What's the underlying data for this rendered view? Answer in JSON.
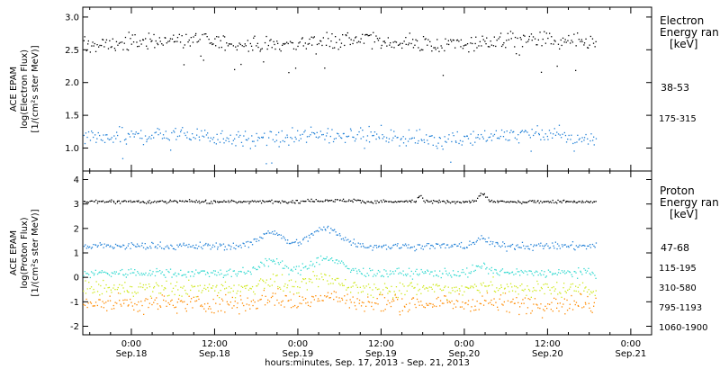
{
  "chart_data": {
    "type": "scatter",
    "x_axis": {
      "label": "hours:minutes, Sep. 17, 2013 - Sep. 21, 2013",
      "range_hours": [
        -7,
        75
      ],
      "ticks": [
        {
          "hour": 0,
          "time": "0:00",
          "date": "Sep.18"
        },
        {
          "hour": 12,
          "time": "12:00",
          "date": "Sep.18"
        },
        {
          "hour": 24,
          "time": "0:00",
          "date": "Sep.19"
        },
        {
          "hour": 36,
          "time": "12:00",
          "date": "Sep.19"
        },
        {
          "hour": 48,
          "time": "0:00",
          "date": "Sep.20"
        },
        {
          "hour": 60,
          "time": "12:00",
          "date": "Sep.20"
        },
        {
          "hour": 72,
          "time": "0:00",
          "date": "Sep.21"
        }
      ],
      "data_end_hour": 67
    },
    "panels": [
      {
        "id": "electron",
        "ylabel_lines": [
          "ACE EPAM",
          "log(Electron Flux)",
          "[1/(cm²s ster MeV)]"
        ],
        "ylim": [
          0.65,
          3.15
        ],
        "yticks": [
          "1.0",
          "1.5",
          "2.0",
          "2.5",
          "3.0"
        ],
        "ytick_values": [
          1.0,
          1.5,
          2.0,
          2.5,
          3.0
        ],
        "legend_title": [
          "Electron",
          "Energy ran",
          "[keV]"
        ],
        "series": [
          {
            "name": "38-53",
            "color": "#000000",
            "baseline": 2.62,
            "spread": 0.1
          },
          {
            "name": "175-315",
            "color": "#1f7fd6",
            "baseline": 1.18,
            "spread": 0.1
          }
        ]
      },
      {
        "id": "proton",
        "ylabel_lines": [
          "ACE EPAM",
          "log(Proton Flux)",
          "[1/(cm²s ster MeV)]"
        ],
        "ylim": [
          -2.35,
          4.35
        ],
        "yticks": [
          "-2",
          "-1",
          "0",
          "1",
          "2",
          "3",
          "4"
        ],
        "ytick_values": [
          -2,
          -1,
          0,
          1,
          2,
          3,
          4
        ],
        "legend_title": [
          "Proton",
          "Energy ran",
          "[keV]"
        ],
        "series": [
          {
            "name": "47-68",
            "color": "#000000",
            "baseline": 3.12,
            "spread": 0.05
          },
          {
            "name": "115-195",
            "color": "#1f7fd6",
            "baseline": 1.3,
            "spread": 0.12
          },
          {
            "name": "310-580",
            "color": "#33d9d0",
            "baseline": 0.2,
            "spread": 0.15
          },
          {
            "name": "795-1193",
            "color": "#cfe81e",
            "baseline": -0.45,
            "spread": 0.25
          },
          {
            "name": "1060-1900",
            "color": "#ff8a00",
            "baseline": -1.05,
            "spread": 0.3
          }
        ]
      }
    ]
  }
}
